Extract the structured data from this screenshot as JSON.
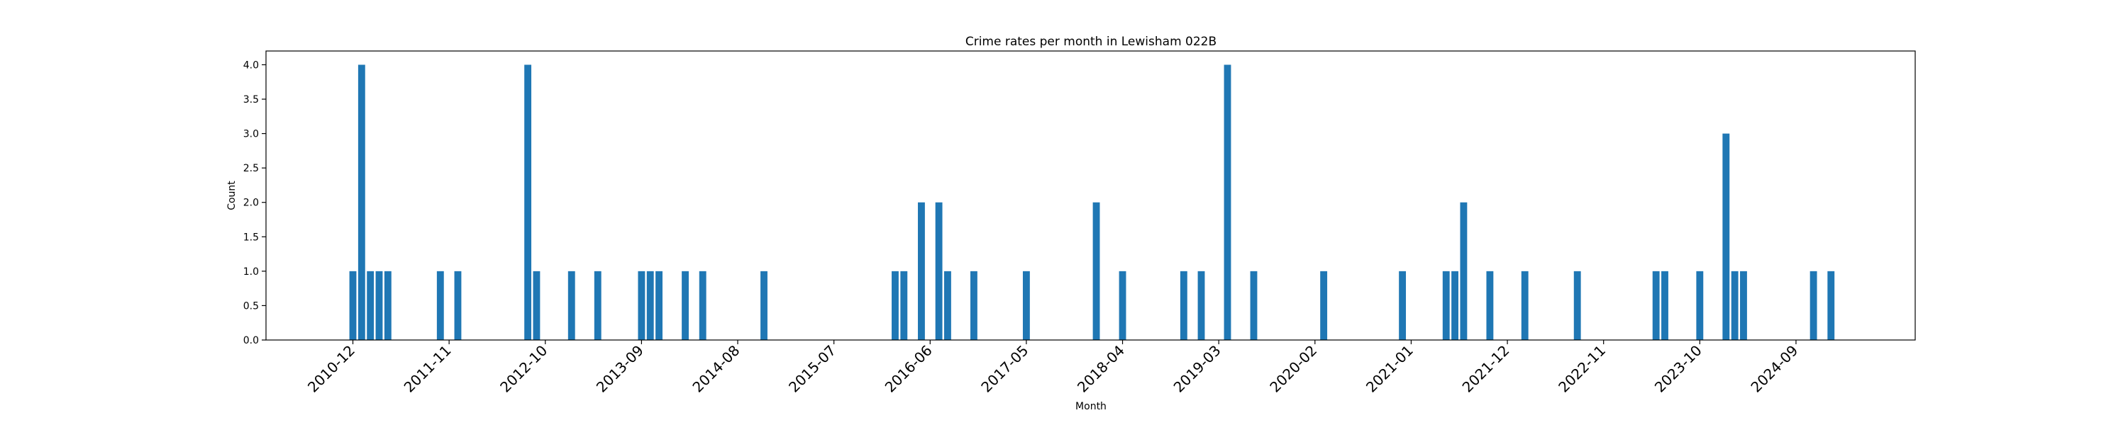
{
  "chart_data": {
    "type": "bar",
    "title": "Crime rates per month in Lewisham 022B",
    "xlabel": "Month",
    "ylabel": "Count",
    "ylim": [
      0,
      4.2
    ],
    "yticks": [
      0.0,
      0.5,
      1.0,
      1.5,
      2.0,
      2.5,
      3.0,
      3.5,
      4.0
    ],
    "ytick_labels": [
      "0.0",
      "0.5",
      "1.0",
      "1.5",
      "2.0",
      "2.5",
      "3.0",
      "3.5",
      "4.0"
    ],
    "xtick_labels": [
      "2010-12",
      "2011-11",
      "2012-10",
      "2013-09",
      "2014-08",
      "2015-07",
      "2016-06",
      "2017-05",
      "2018-04",
      "2019-03",
      "2020-02",
      "2021-01",
      "2021-12",
      "2022-11",
      "2023-10",
      "2024-09"
    ],
    "bar_color": "#1f77b4",
    "categories": [
      "2010-12",
      "2011-01",
      "2011-02",
      "2011-03",
      "2011-04",
      "2011-10",
      "2011-12",
      "2012-08",
      "2012-09",
      "2013-01",
      "2013-04",
      "2013-09",
      "2013-10",
      "2013-11",
      "2014-02",
      "2014-04",
      "2014-11",
      "2016-02",
      "2016-03",
      "2016-05",
      "2016-07",
      "2016-08",
      "2016-11",
      "2017-05",
      "2018-01",
      "2018-04",
      "2018-11",
      "2019-01",
      "2019-04",
      "2019-07",
      "2020-03",
      "2020-12",
      "2021-05",
      "2021-06",
      "2021-07",
      "2021-10",
      "2022-02",
      "2022-08",
      "2023-05",
      "2023-06",
      "2023-10",
      "2024-01",
      "2024-02",
      "2024-03",
      "2024-11",
      "2025-01"
    ],
    "values": [
      1,
      4,
      1,
      1,
      1,
      1,
      1,
      4,
      1,
      1,
      1,
      1,
      1,
      1,
      1,
      1,
      1,
      1,
      1,
      2,
      2,
      1,
      1,
      1,
      2,
      1,
      1,
      1,
      4,
      1,
      1,
      1,
      1,
      1,
      2,
      1,
      1,
      1,
      1,
      1,
      1,
      3,
      1,
      1,
      1,
      1
    ]
  }
}
